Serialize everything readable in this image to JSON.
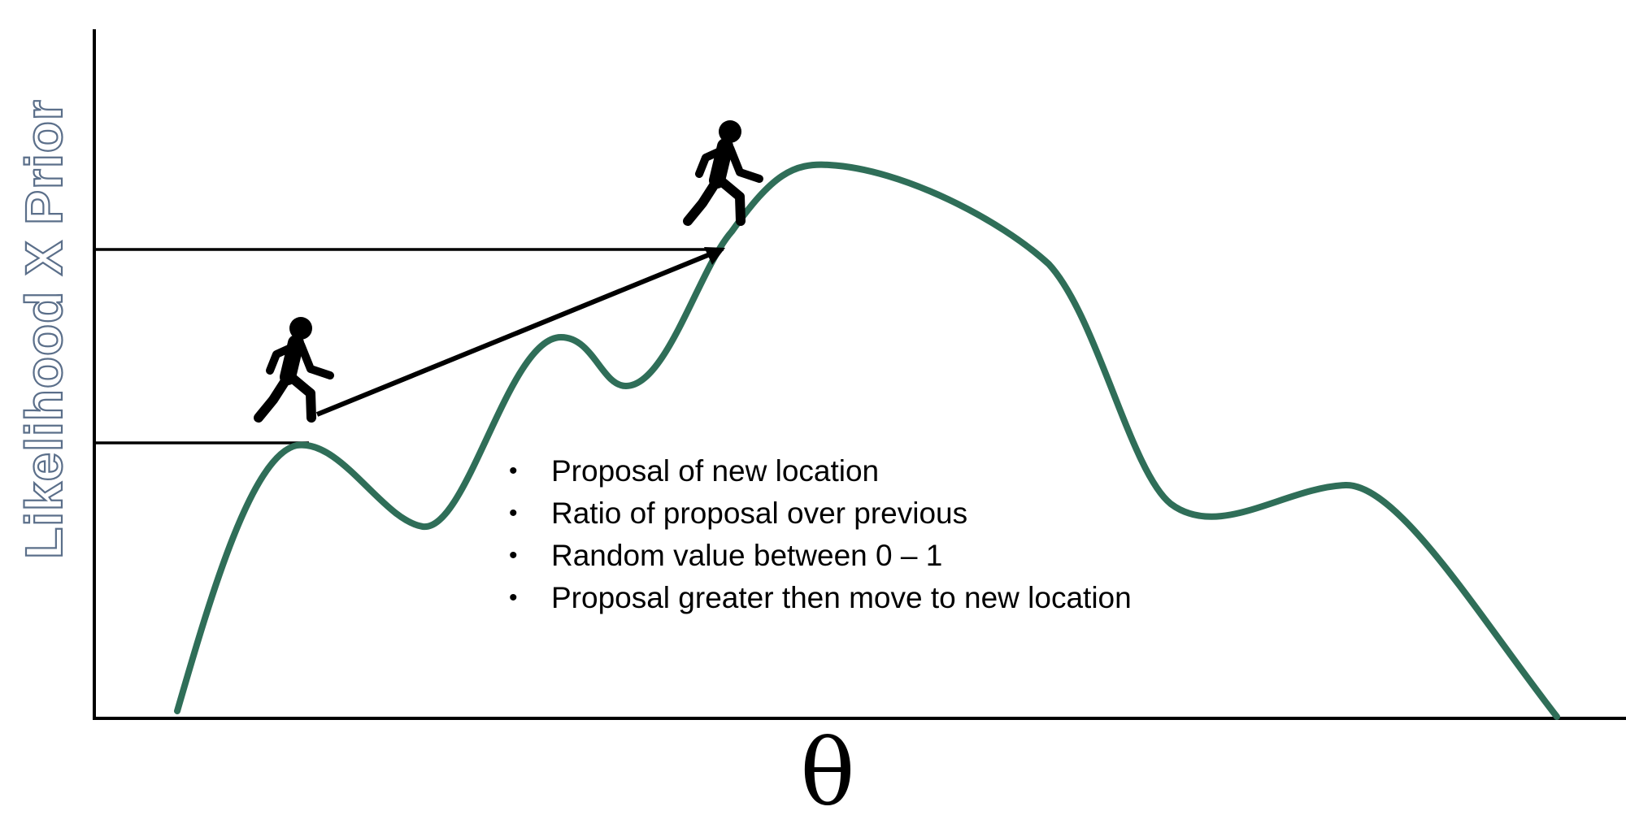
{
  "axes": {
    "y_label": "Likelihood X Prior",
    "x_label": "θ"
  },
  "bullets": [
    "Proposal of new location",
    "Ratio of proposal over previous",
    "Random value between 0 – 1",
    "Proposal greater then move to new location"
  ],
  "bullet_symbol": "•",
  "colors": {
    "curve": "#2f6e58",
    "axis": "#000000",
    "y_label_outline": "#5b6f8a"
  },
  "icons": {
    "walker": "person-walking-icon"
  }
}
